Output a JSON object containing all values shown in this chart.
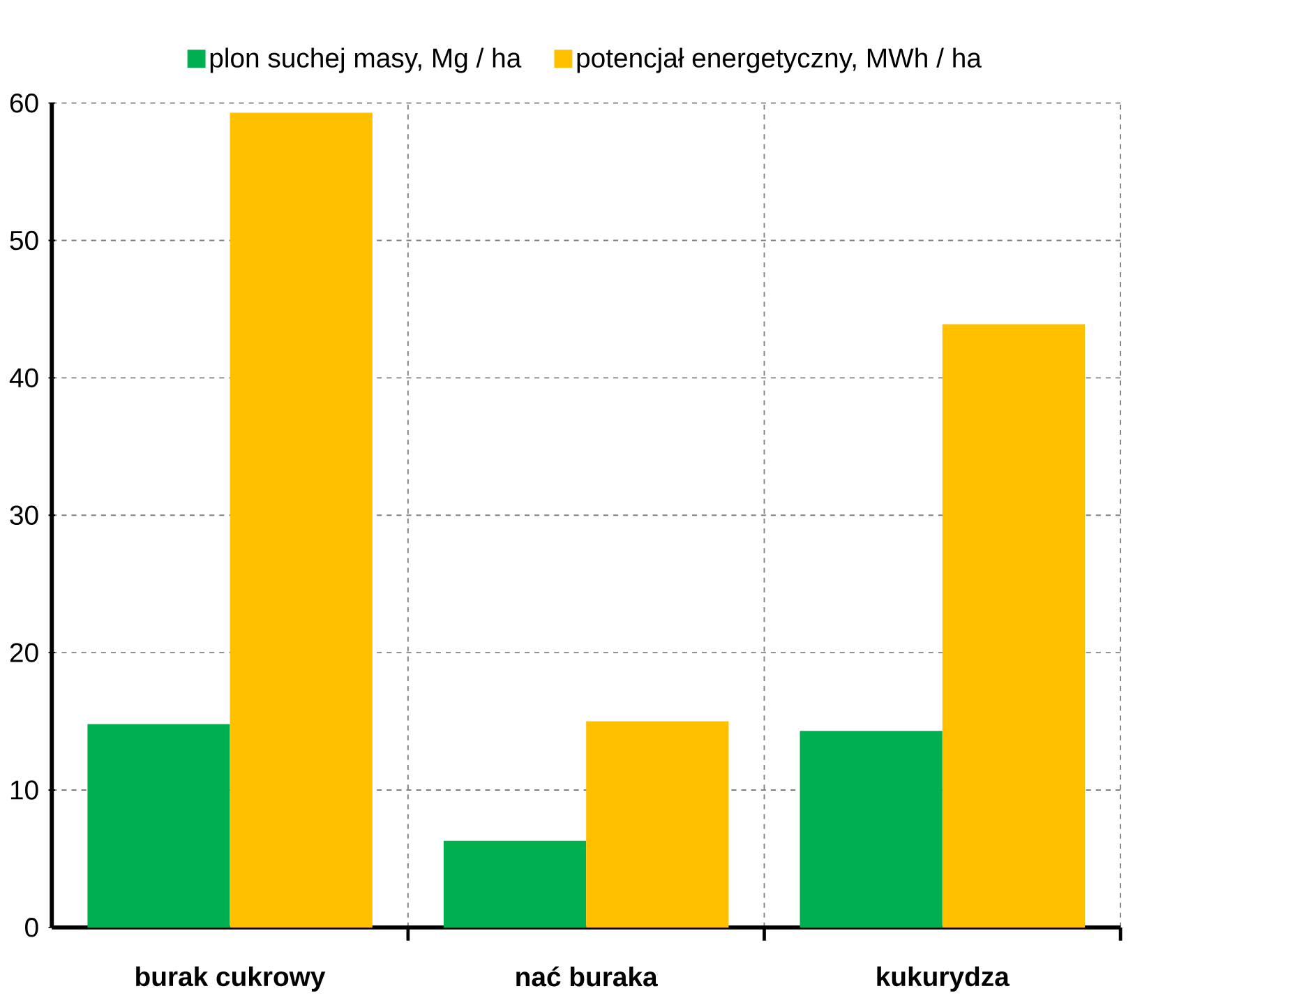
{
  "chart_data": {
    "type": "bar",
    "categories": [
      "burak cukrowy",
      "nać buraka",
      "kukurydza"
    ],
    "series": [
      {
        "name": "plon suchej masy, Mg / ha",
        "color": "#00b050",
        "values": [
          14.8,
          6.3,
          14.3
        ]
      },
      {
        "name": "potencjał energetyczny, MWh / ha",
        "color": "#ffc000",
        "values": [
          59.3,
          15.0,
          43.9
        ]
      }
    ],
    "ylim": [
      0,
      60
    ],
    "yticks": [
      0,
      10,
      20,
      30,
      40,
      50,
      60
    ],
    "grid": true,
    "legend": "top"
  }
}
